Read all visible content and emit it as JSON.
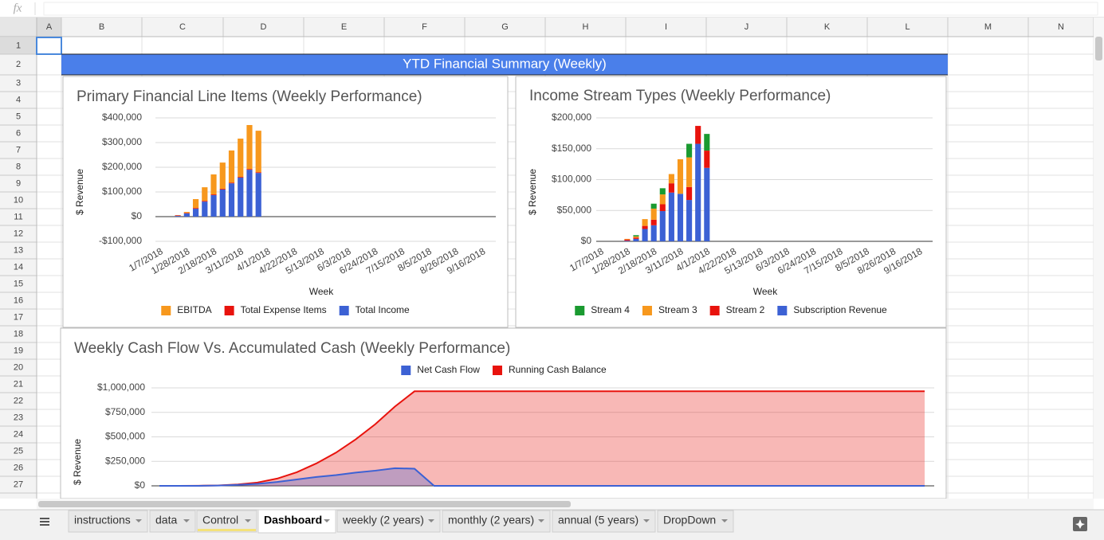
{
  "formula_bar": {
    "icon": "fx"
  },
  "columns": [
    "A",
    "B",
    "C",
    "D",
    "E",
    "F",
    "G",
    "H",
    "I",
    "J",
    "K",
    "L",
    "M",
    "N"
  ],
  "rows": [
    1,
    2,
    3,
    4,
    5,
    6,
    7,
    8,
    9,
    10,
    11,
    12,
    13,
    14,
    15,
    16,
    17,
    18,
    19,
    20,
    21,
    22,
    23,
    24,
    25,
    26,
    27
  ],
  "banner": "YTD Financial Summary (Weekly)",
  "tabs": [
    "instructions",
    "data",
    "Control",
    "Dashboard",
    "weekly (2 years)",
    "monthly (2 years)",
    "annual (5 years)",
    "DropDown"
  ],
  "chart_data": [
    {
      "type": "bar",
      "stacked": true,
      "title": "Primary Financial Line Items (Weekly Performance)",
      "y_label": "$ Revenue",
      "x_label": "Week",
      "grid": true,
      "legend": "bottom",
      "categories": [
        "1/7/2018",
        null,
        null,
        "1/28/2018",
        null,
        null,
        "2/18/2018",
        null,
        null,
        "3/11/2018",
        null,
        null,
        "4/1/2018",
        null,
        null,
        "4/22/2018",
        null,
        null,
        "5/13/2018",
        null,
        null,
        "6/3/2018",
        null,
        null,
        "6/24/2018",
        null,
        null,
        "7/15/2018",
        null,
        null,
        "8/5/2018",
        null,
        null,
        "8/26/2018",
        null,
        null,
        "9/16/2018",
        null
      ],
      "series": [
        {
          "name": "Total Income",
          "color": "#3c61d4",
          "values": [
            null,
            null,
            3000,
            13000,
            32000,
            61000,
            87000,
            110000,
            135000,
            158000,
            190000,
            177000,
            null,
            null,
            null,
            null,
            null,
            null,
            null,
            null,
            null,
            null,
            null,
            null,
            null,
            null,
            null,
            null,
            null,
            null,
            null,
            null,
            null,
            null,
            null,
            null,
            null,
            null
          ]
        },
        {
          "name": "Total Expense Items",
          "color": "#e8130d",
          "values": [
            null,
            null,
            2000,
            2000,
            3000,
            3000,
            3000,
            3000,
            3000,
            3000,
            3000,
            3000,
            null,
            null,
            null,
            null,
            null,
            null,
            null,
            null,
            null,
            null,
            null,
            null,
            null,
            null,
            null,
            null,
            null,
            null,
            null,
            null,
            null,
            null,
            null,
            null,
            null,
            null
          ]
        },
        {
          "name": "EBITDA",
          "color": "#f7981d",
          "values": [
            null,
            null,
            1000,
            4000,
            36000,
            55000,
            81000,
            106000,
            130000,
            155000,
            178000,
            168000,
            null,
            null,
            null,
            null,
            null,
            null,
            null,
            null,
            null,
            null,
            null,
            null,
            null,
            null,
            null,
            null,
            null,
            null,
            null,
            null,
            null,
            null,
            null,
            null,
            null,
            null
          ]
        }
      ],
      "ylim": [
        -100000,
        400000
      ],
      "yticks": [
        {
          "value": -100000,
          "label": "-$100,000"
        },
        {
          "value": 0,
          "label": "$0"
        },
        {
          "value": 100000,
          "label": "$100,000"
        },
        {
          "value": 200000,
          "label": "$200,000"
        },
        {
          "value": 300000,
          "label": "$300,000"
        },
        {
          "value": 400000,
          "label": "$400,000"
        }
      ]
    },
    {
      "type": "bar",
      "stacked": true,
      "title": "Income Stream Types (Weekly Performance)",
      "y_label": "$ Revenue",
      "x_label": "Week",
      "grid": true,
      "legend": "bottom",
      "categories": [
        "1/7/2018",
        null,
        null,
        "1/28/2018",
        null,
        null,
        "2/18/2018",
        null,
        null,
        "3/11/2018",
        null,
        null,
        "4/1/2018",
        null,
        null,
        "4/22/2018",
        null,
        null,
        "5/13/2018",
        null,
        null,
        "6/3/2018",
        null,
        null,
        "6/24/2018",
        null,
        null,
        "7/15/2018",
        null,
        null,
        "8/5/2018",
        null,
        null,
        "8/26/2018",
        null,
        null,
        "9/16/2018",
        null
      ],
      "series": [
        {
          "name": "Subscription Revenue",
          "color": "#3c61d4",
          "values": [
            null,
            null,
            null,
            1000,
            4000,
            20000,
            26000,
            49000,
            79000,
            77000,
            67000,
            158000,
            119000,
            null,
            null,
            null,
            null,
            null,
            null,
            null,
            null,
            null,
            null,
            null,
            null,
            null,
            null,
            null,
            null,
            null,
            null,
            null,
            null,
            null,
            null,
            null,
            null,
            null
          ]
        },
        {
          "name": "Stream 2",
          "color": "#e8130d",
          "values": [
            null,
            null,
            null,
            2000,
            2000,
            5000,
            9000,
            11000,
            15000,
            0,
            21000,
            29000,
            28000,
            null,
            null,
            null,
            null,
            null,
            null,
            null,
            null,
            null,
            null,
            null,
            null,
            null,
            null,
            null,
            null,
            null,
            null,
            null,
            null,
            null,
            null,
            null,
            null,
            null
          ]
        },
        {
          "name": "Stream 3",
          "color": "#f7981d",
          "values": [
            null,
            null,
            null,
            1000,
            2000,
            11000,
            18000,
            16000,
            15000,
            56000,
            48000,
            0,
            0,
            null,
            null,
            null,
            null,
            null,
            null,
            null,
            null,
            null,
            null,
            null,
            null,
            null,
            null,
            null,
            null,
            null,
            null,
            null,
            null,
            null,
            null,
            null,
            null,
            null
          ]
        },
        {
          "name": "Stream 4",
          "color": "#1a9a30",
          "values": [
            null,
            null,
            null,
            0,
            2000,
            0,
            8000,
            10000,
            0,
            0,
            22000,
            0,
            27000,
            null,
            null,
            null,
            null,
            null,
            null,
            null,
            null,
            null,
            null,
            null,
            null,
            null,
            null,
            null,
            null,
            null,
            null,
            null,
            null,
            null,
            null,
            null,
            null,
            null
          ]
        }
      ],
      "ylim": [
        0,
        200000
      ],
      "yticks": [
        {
          "value": 0,
          "label": "$0"
        },
        {
          "value": 50000,
          "label": "$50,000"
        },
        {
          "value": 100000,
          "label": "$100,000"
        },
        {
          "value": 150000,
          "label": "$150,000"
        },
        {
          "value": 200000,
          "label": "$200,000"
        }
      ]
    },
    {
      "type": "area",
      "title": "Weekly Cash Flow Vs. Accumulated Cash (Weekly Performance)",
      "y_label": "$ Revenue",
      "grid": true,
      "legend": "top",
      "categories": [
        null,
        null,
        null,
        null,
        null,
        null,
        null,
        null,
        null,
        null,
        null,
        null,
        null,
        null,
        null,
        null,
        null,
        null,
        null,
        null,
        null,
        null,
        null,
        null,
        null,
        null,
        null,
        null,
        null,
        null,
        null,
        null,
        null,
        null,
        null,
        null,
        null,
        null,
        null,
        null
      ],
      "series": [
        {
          "name": "Net Cash Flow",
          "color": "#3c61d4",
          "values": [
            0,
            0,
            0,
            3000,
            10000,
            20000,
            40000,
            65000,
            90000,
            110000,
            135000,
            155000,
            180000,
            175000,
            0,
            0,
            0,
            0,
            0,
            0,
            0,
            0,
            0,
            0,
            0,
            0,
            0,
            0,
            0,
            0,
            0,
            0,
            0,
            0,
            0,
            0,
            0,
            0,
            0,
            0
          ]
        },
        {
          "name": "Running Cash Balance",
          "color": "#e8130d",
          "values": [
            0,
            0,
            1000,
            4000,
            14000,
            34000,
            74000,
            139000,
            229000,
            339000,
            474000,
            629000,
            809000,
            965000,
            965000,
            965000,
            965000,
            965000,
            965000,
            965000,
            965000,
            965000,
            965000,
            965000,
            965000,
            965000,
            965000,
            965000,
            965000,
            965000,
            965000,
            965000,
            965000,
            965000,
            965000,
            965000,
            965000,
            965000,
            965000,
            965000
          ]
        }
      ],
      "ylim": [
        0,
        1000000
      ],
      "yticks": [
        {
          "value": 0,
          "label": "$0"
        },
        {
          "value": 250000,
          "label": "$250,000"
        },
        {
          "value": 500000,
          "label": "$500,000"
        },
        {
          "value": 750000,
          "label": "$750,000"
        },
        {
          "value": 1000000,
          "label": "$1,000,000"
        }
      ]
    }
  ]
}
